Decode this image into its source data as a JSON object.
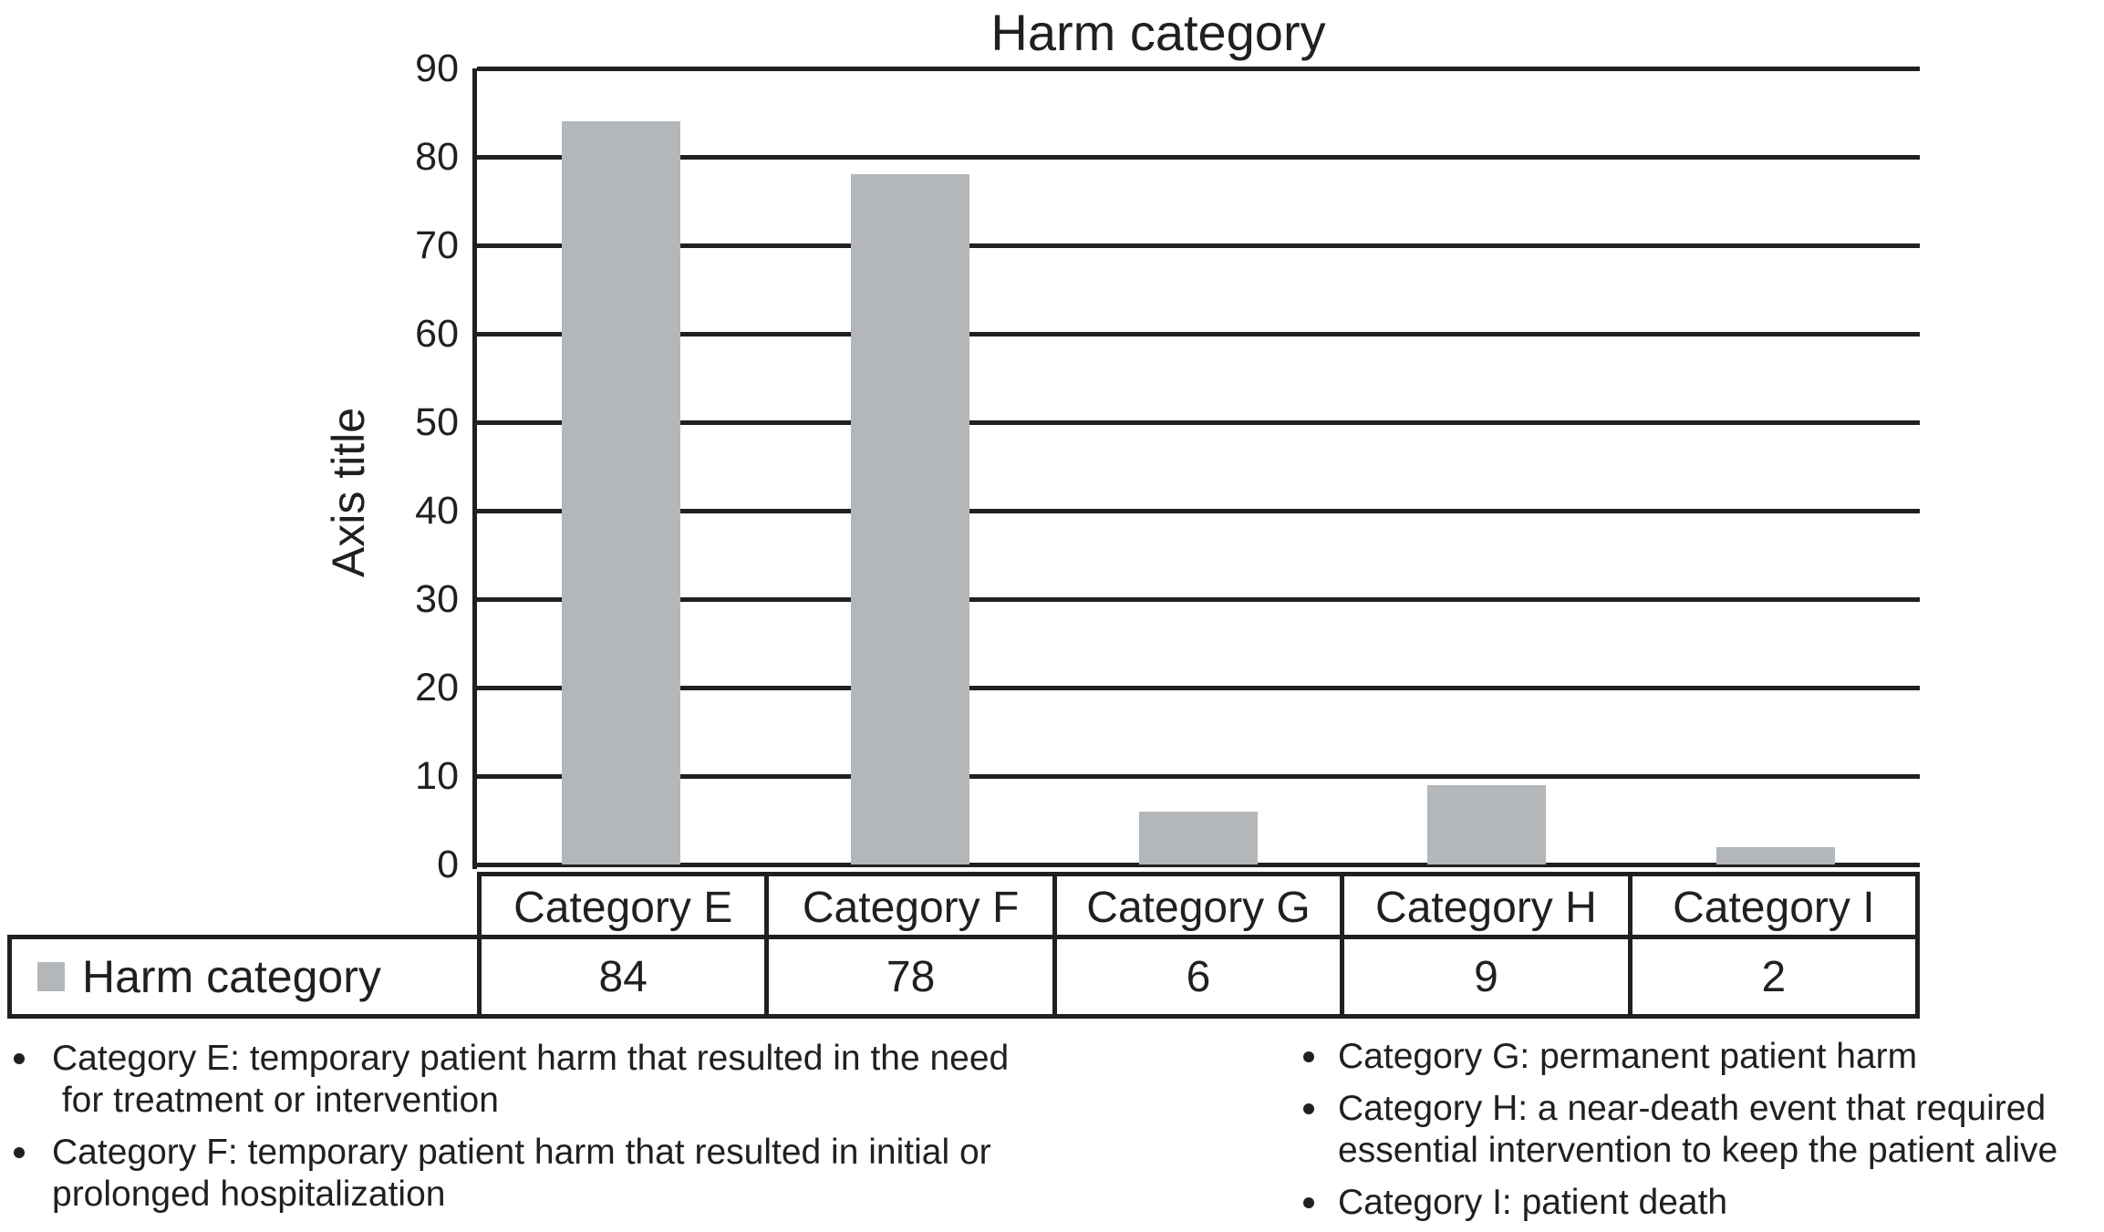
{
  "chart_data": {
    "type": "bar",
    "title": "Harm category",
    "xlabel": "",
    "ylabel": "Axis title",
    "categories": [
      "Category E",
      "Category F",
      "Category G",
      "Category H",
      "Category I"
    ],
    "series": [
      {
        "name": "Harm category",
        "values": [
          84,
          78,
          6,
          9,
          2
        ]
      }
    ],
    "ylim": [
      0,
      90
    ],
    "ytick_step": 10,
    "grid": "horizontal",
    "legend_position": "bottom-left-of-data-table",
    "bar_color": "#b4b7b9",
    "ink_color": "#231f20"
  },
  "data_table": {
    "legend_swatch": "gray-square-icon",
    "legend_label": "Harm category",
    "columns": [
      "Category E",
      "Category F",
      "Category G",
      "Category H",
      "Category I"
    ],
    "values": [
      "84",
      "78",
      "6",
      "9",
      "2"
    ]
  },
  "footnotes": {
    "left": [
      {
        "lines": [
          "Category E: temporary patient harm that resulted in the need",
          " for treatment or intervention"
        ]
      },
      {
        "lines": [
          "Category F: temporary patient harm that resulted in initial or",
          "prolonged hospitalization"
        ]
      }
    ],
    "right": [
      {
        "lines": [
          "Category G: permanent patient harm"
        ]
      },
      {
        "lines": [
          "Category H: a near-death event that required",
          "essential intervention to keep the patient alive"
        ]
      },
      {
        "lines": [
          "Category I: patient death"
        ]
      }
    ]
  }
}
